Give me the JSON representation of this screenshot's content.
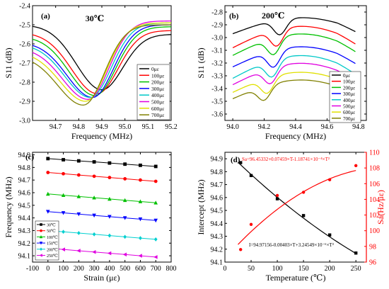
{
  "figure": {
    "panels": [
      {
        "id": "a",
        "label": "(a)",
        "condition": "30℃"
      },
      {
        "id": "b",
        "label": "(b)",
        "condition": "200℃"
      },
      {
        "id": "c",
        "label": "(c)",
        "condition": ""
      },
      {
        "id": "d",
        "label": "(d)",
        "condition": ""
      }
    ]
  },
  "chart_data": [
    {
      "type": "line",
      "panel": "a",
      "title": "30℃",
      "xlabel": "Frequency (MHz)",
      "ylabel": "S11 (dB)",
      "xlim": [
        94.6,
        95.2
      ],
      "ylim": [
        -3.0,
        -2.4
      ],
      "xticks": [
        94.7,
        94.8,
        94.9,
        95.0,
        95.1,
        95.2
      ],
      "xtick_labels": [
        "94.7",
        "94.8",
        "94.9",
        "95.0",
        "95.1",
        "95.2"
      ],
      "yticks": [
        -3.0,
        -2.9,
        -2.8,
        -2.7,
        -2.6,
        -2.5,
        -2.4
      ],
      "ytick_labels": [
        "-3.0",
        "-2.9",
        "-2.8",
        "-2.7",
        "-2.6",
        "-2.5",
        "-2.4"
      ],
      "legend_position": "right",
      "series": [
        {
          "name": "0με",
          "color": "#000000",
          "min_x": 94.9,
          "min_y": -2.84,
          "start_y": -2.5,
          "end_y": -2.55
        },
        {
          "name": "100με",
          "color": "#ff0000",
          "min_x": 94.88,
          "min_y": -2.86,
          "start_y": -2.54,
          "end_y": -2.53
        },
        {
          "name": "200με",
          "color": "#00c000",
          "min_x": 94.87,
          "min_y": -2.87,
          "start_y": -2.56,
          "end_y": -2.51
        },
        {
          "name": "300με",
          "color": "#0000ff",
          "min_x": 94.86,
          "min_y": -2.88,
          "start_y": -2.59,
          "end_y": -2.5
        },
        {
          "name": "400με",
          "color": "#00c8c8",
          "min_x": 94.85,
          "min_y": -2.88,
          "start_y": -2.6,
          "end_y": -2.49
        },
        {
          "name": "500με",
          "color": "#e000e0",
          "min_x": 94.84,
          "min_y": -2.89,
          "start_y": -2.62,
          "end_y": -2.48
        },
        {
          "name": "600με",
          "color": "#e0e000",
          "min_x": 94.83,
          "min_y": -2.9,
          "start_y": -2.64,
          "end_y": -2.49
        },
        {
          "name": "700με",
          "color": "#808000",
          "min_x": 94.82,
          "min_y": -2.92,
          "start_y": -2.66,
          "end_y": -2.5
        }
      ]
    },
    {
      "type": "line",
      "panel": "b",
      "title": "200℃",
      "xlabel": "Frequency (MHz)",
      "ylabel": "S11 (dB)",
      "xlim": [
        93.95,
        94.85
      ],
      "ylim": [
        -3.65,
        -2.75
      ],
      "xticks": [
        94.0,
        94.2,
        94.4,
        94.6,
        94.8
      ],
      "xtick_labels": [
        "94.0",
        "94.2",
        "94.4",
        "94.6",
        "94.8"
      ],
      "yticks": [
        -3.6,
        -3.5,
        -3.4,
        -3.3,
        -3.2,
        -3.1,
        -3.0,
        -2.9,
        -2.8
      ],
      "ytick_labels": [
        "-3.6",
        "-3.5",
        "-3.4",
        "-3.3",
        "-3.2",
        "-3.1",
        "-3.0",
        "-2.9",
        "-2.8"
      ],
      "legend_position": "bottom-right",
      "series": [
        {
          "name": "0με",
          "color": "#000000",
          "base_start": -2.97,
          "base_end": -2.85,
          "min_x": 94.3,
          "depth": 0.12
        },
        {
          "name": "100με",
          "color": "#ff0000",
          "base_start": -3.08,
          "base_end": -2.92,
          "min_x": 94.28,
          "depth": 0.13
        },
        {
          "name": "200με",
          "color": "#00c000",
          "base_start": -3.14,
          "base_end": -2.98,
          "min_x": 94.26,
          "depth": 0.13
        },
        {
          "name": "300με",
          "color": "#0000ff",
          "base_start": -3.23,
          "base_end": -3.08,
          "min_x": 94.26,
          "depth": 0.13
        },
        {
          "name": "400με",
          "color": "#00c8c8",
          "base_start": -3.32,
          "base_end": -3.15,
          "min_x": 94.25,
          "depth": 0.13
        },
        {
          "name": "500με",
          "color": "#e000e0",
          "base_start": -3.37,
          "base_end": -3.21,
          "min_x": 94.24,
          "depth": 0.12
        },
        {
          "name": "600με",
          "color": "#e0e000",
          "base_start": -3.43,
          "base_end": -3.28,
          "min_x": 94.22,
          "depth": 0.12
        },
        {
          "name": "700με",
          "color": "#808000",
          "base_start": -3.48,
          "base_end": -3.34,
          "min_x": 94.2,
          "depth": 0.11
        }
      ]
    },
    {
      "type": "line",
      "panel": "c",
      "title": "",
      "xlabel": "Strain (με)",
      "ylabel": "Frequency (MHz)",
      "xlim": [
        -100,
        800
      ],
      "ylim": [
        94.05,
        94.92
      ],
      "xticks": [
        -100,
        0,
        100,
        200,
        300,
        400,
        500,
        600,
        700,
        800
      ],
      "xtick_labels": [
        "-100",
        "0",
        "100",
        "200",
        "300",
        "400",
        "500",
        "600",
        "700",
        "800"
      ],
      "yticks": [
        94.1,
        94.2,
        94.3,
        94.4,
        94.5,
        94.6,
        94.7,
        94.8,
        94.9
      ],
      "ytick_labels": [
        "94.1",
        "94.2",
        "94.3",
        "94.4",
        "94.5",
        "94.6",
        "94.7",
        "94.8",
        "94.9"
      ],
      "legend_position": "bottom-left",
      "x": [
        0,
        100,
        200,
        300,
        400,
        500,
        600,
        700
      ],
      "series": [
        {
          "name": "30℃",
          "color": "#000000",
          "marker": "square",
          "values": [
            94.87,
            94.861,
            94.852,
            94.844,
            94.835,
            94.826,
            94.817,
            94.808
          ]
        },
        {
          "name": "50℃",
          "color": "#ff0000",
          "marker": "circle",
          "values": [
            94.76,
            94.75,
            94.74,
            94.73,
            94.72,
            94.71,
            94.7,
            94.69
          ]
        },
        {
          "name": "100℃",
          "color": "#00c000",
          "marker": "triangle-up",
          "values": [
            94.59,
            94.58,
            94.57,
            94.56,
            94.55,
            94.54,
            94.53,
            94.52
          ]
        },
        {
          "name": "150℃",
          "color": "#0000ff",
          "marker": "triangle-down",
          "values": [
            94.45,
            94.44,
            94.43,
            94.42,
            94.41,
            94.4,
            94.39,
            94.38
          ]
        },
        {
          "name": "200℃",
          "color": "#00d0d0",
          "marker": "diamond",
          "values": [
            94.3,
            94.29,
            94.28,
            94.27,
            94.26,
            94.25,
            94.24,
            94.23
          ]
        },
        {
          "name": "250℃",
          "color": "#e000e0",
          "marker": "triangle-left",
          "values": [
            94.16,
            94.15,
            94.14,
            94.13,
            94.12,
            94.11,
            94.1,
            94.09
          ]
        }
      ]
    },
    {
      "type": "scatter",
      "panel": "d",
      "title": "",
      "xlabel": "Temperature (℃)",
      "ylabel": "Intercept (MHz)",
      "y2label": "Sa(Hz/με)",
      "xlim": [
        0,
        270
      ],
      "ylim": [
        94.1,
        94.95
      ],
      "y2lim": [
        96,
        110
      ],
      "xticks": [
        0,
        50,
        100,
        150,
        200,
        250
      ],
      "xtick_labels": [
        "0",
        "50",
        "100",
        "150",
        "200",
        "250"
      ],
      "yticks": [
        94.1,
        94.2,
        94.3,
        94.4,
        94.5,
        94.6,
        94.7,
        94.8,
        94.9
      ],
      "ytick_labels": [
        "94.1",
        "94.2",
        "94.3",
        "94.4",
        "94.5",
        "94.6",
        "94.7",
        "94.8",
        "94.9"
      ],
      "y2ticks": [
        96,
        98,
        100,
        102,
        104,
        106,
        108,
        110
      ],
      "y2tick_labels": [
        "96",
        "98",
        "100",
        "102",
        "104",
        "106",
        "108",
        "110"
      ],
      "annotations": [
        "Sa=96.45332+0.07459×T-1.18741×10⁻⁴×T²",
        "I=94.97156-0.00403×T+3.24549×10⁻⁶×T²"
      ],
      "series": [
        {
          "name": "Intercept",
          "color": "#000000",
          "axis": "left",
          "x": [
            30,
            50,
            100,
            150,
            200,
            250
          ],
          "values": [
            94.87,
            94.77,
            94.59,
            94.46,
            94.31,
            94.17
          ],
          "fit": [
            94.97156,
            -0.00403,
            3.24549e-06
          ]
        },
        {
          "name": "Sa",
          "color": "#ff0000",
          "axis": "right",
          "x": [
            30,
            50,
            100,
            150,
            200,
            250
          ],
          "values": [
            97.6,
            100.8,
            104.5,
            104.9,
            106.5,
            108.3
          ],
          "fit": [
            96.45332,
            0.07459,
            -0.000118741
          ]
        }
      ]
    }
  ]
}
